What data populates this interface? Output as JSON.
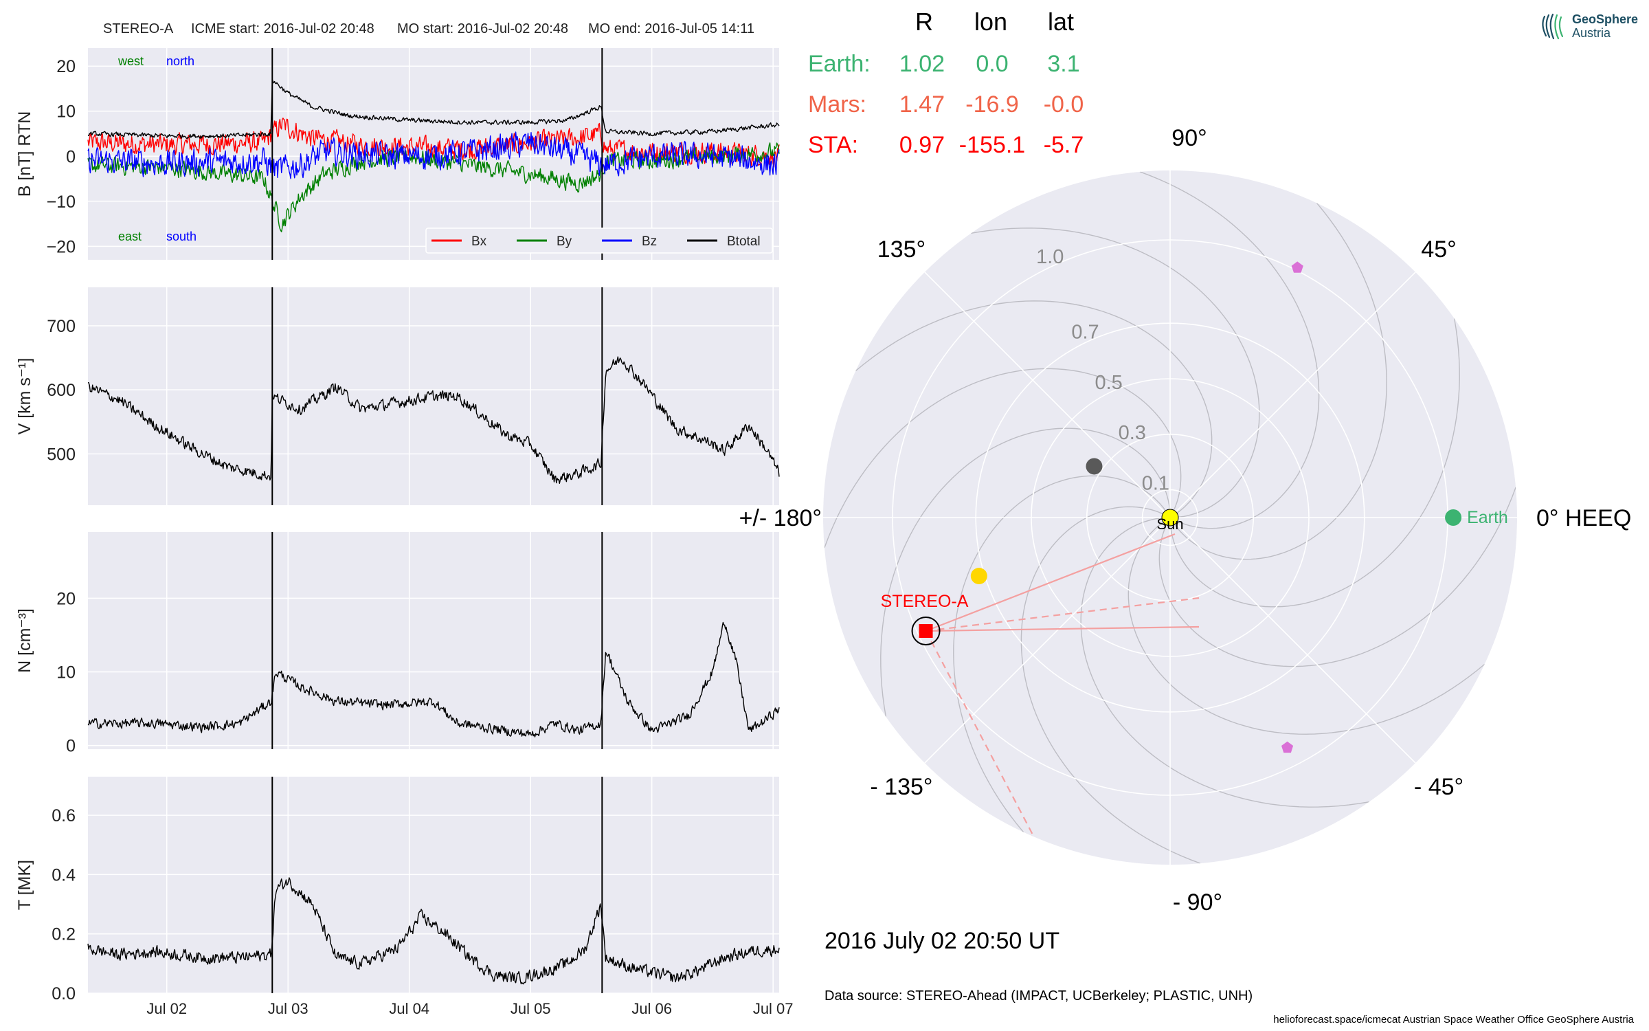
{
  "header": {
    "spacecraft": "STEREO-A",
    "icme_start": "ICME start: 2016-Jul-02 20:48",
    "mo_start": "MO start: 2016-Jul-02 20:48",
    "mo_end": "MO end: 2016-Jul-05 14:11"
  },
  "logo": {
    "name": "GeoSphere",
    "sub": "Austria"
  },
  "positions": {
    "headers": [
      "R",
      "lon",
      "lat"
    ],
    "rows": [
      {
        "label": "Earth:",
        "R": "1.02",
        "lon": "0.0",
        "lat": "3.1",
        "color": "#3cb371"
      },
      {
        "label": "Mars:",
        "R": "1.47",
        "lon": "-16.9",
        "lat": "-0.0",
        "color": "#f06449"
      },
      {
        "label": "STA:",
        "R": "0.97",
        "lon": "-155.1",
        "lat": "-5.7",
        "color": "#ff0000"
      }
    ]
  },
  "timestamp": "2016 July 02  20:50 UT",
  "data_source": "Data source: STEREO-Ahead (IMPACT, UCBerkeley; PLASTIC, UNH)",
  "footer": "helioforecast.space/icmecat   Austrian Space Weather Office   GeoSphere Austria",
  "colors": {
    "panel_bg": "#eaeaf2",
    "grid": "#ffffff",
    "bx": "#ff0000",
    "by": "#008000",
    "bz": "#0000ff",
    "btotal": "#000000"
  },
  "chart_data": [
    {
      "type": "line",
      "panel": "magnetic-field",
      "ylabel": "B [nT] RTN",
      "ylim": [
        -23,
        24
      ],
      "yticks": [
        20,
        10,
        0,
        -10,
        -20
      ],
      "ytick_labels": [
        "20",
        "10",
        "0",
        "−10",
        "−20"
      ],
      "xlim_days": [
        1.35,
        7.05
      ],
      "xticks_days": [
        2,
        3,
        4,
        5,
        6,
        7
      ],
      "xtick_labels": [
        "Jul 02",
        "Jul 03",
        "Jul 04",
        "Jul 05",
        "Jul 06",
        "Jul 07"
      ],
      "event_lines_days": [
        2.87,
        5.59
      ],
      "annotations": {
        "west": "west",
        "north": "north",
        "east": "east",
        "south": "south"
      },
      "legend_position": "lower-right",
      "series": [
        {
          "name": "Bx",
          "color": "#ff0000",
          "knots": [
            [
              1.35,
              3
            ],
            [
              2.0,
              2.5
            ],
            [
              2.8,
              3
            ],
            [
              2.87,
              5
            ],
            [
              2.95,
              7
            ],
            [
              3.2,
              4
            ],
            [
              3.6,
              2.5
            ],
            [
              4.0,
              2
            ],
            [
              4.5,
              1.5
            ],
            [
              5.0,
              3
            ],
            [
              5.4,
              4
            ],
            [
              5.58,
              5
            ],
            [
              5.62,
              1.5
            ],
            [
              6.0,
              1
            ],
            [
              6.5,
              1
            ],
            [
              7.05,
              0
            ]
          ],
          "noise": 3.2
        },
        {
          "name": "By",
          "color": "#008000",
          "knots": [
            [
              1.35,
              -2
            ],
            [
              2.0,
              -2.5
            ],
            [
              2.5,
              -4
            ],
            [
              2.8,
              -5
            ],
            [
              2.87,
              -10
            ],
            [
              2.95,
              -15
            ],
            [
              3.1,
              -9
            ],
            [
              3.3,
              -4
            ],
            [
              3.6,
              -1
            ],
            [
              4.0,
              0
            ],
            [
              4.5,
              -2
            ],
            [
              5.0,
              -4
            ],
            [
              5.4,
              -6
            ],
            [
              5.58,
              -4
            ],
            [
              5.62,
              -1
            ],
            [
              6.0,
              -1
            ],
            [
              6.5,
              0
            ],
            [
              7.05,
              1
            ]
          ],
          "noise": 2.6
        },
        {
          "name": "Bz",
          "color": "#0000ff",
          "knots": [
            [
              1.35,
              -1
            ],
            [
              2.0,
              -1.5
            ],
            [
              2.8,
              -1
            ],
            [
              2.9,
              -3
            ],
            [
              3.1,
              -2
            ],
            [
              3.3,
              1
            ],
            [
              3.8,
              0
            ],
            [
              4.2,
              0
            ],
            [
              4.8,
              2
            ],
            [
              5.0,
              3
            ],
            [
              5.4,
              0
            ],
            [
              5.6,
              -2
            ],
            [
              6.0,
              0
            ],
            [
              6.5,
              0
            ],
            [
              7.05,
              -2
            ]
          ],
          "noise": 4.0
        },
        {
          "name": "Btotal",
          "color": "#000000",
          "knots": [
            [
              1.35,
              5
            ],
            [
              2.0,
              4.5
            ],
            [
              2.5,
              4.5
            ],
            [
              2.86,
              5
            ],
            [
              2.87,
              17
            ],
            [
              3.0,
              14
            ],
            [
              3.2,
              11
            ],
            [
              3.5,
              9
            ],
            [
              4.0,
              8
            ],
            [
              4.5,
              7.5
            ],
            [
              5.0,
              7.5
            ],
            [
              5.3,
              8
            ],
            [
              5.58,
              11
            ],
            [
              5.62,
              5.5
            ],
            [
              6.0,
              5
            ],
            [
              6.5,
              5.5
            ],
            [
              7.05,
              7
            ]
          ],
          "noise": 0.7
        }
      ]
    },
    {
      "type": "line",
      "panel": "speed",
      "ylabel": "V [km s⁻¹]",
      "ylim": [
        420,
        760
      ],
      "yticks": [
        500,
        600,
        700
      ],
      "ytick_labels": [
        "500",
        "600",
        "700"
      ],
      "xlim_days": [
        1.35,
        7.05
      ],
      "event_lines_days": [
        2.87,
        5.59
      ],
      "series": [
        {
          "name": "V",
          "color": "#000000",
          "knots": [
            [
              1.35,
              605
            ],
            [
              1.6,
              585
            ],
            [
              1.9,
              545
            ],
            [
              2.2,
              510
            ],
            [
              2.5,
              480
            ],
            [
              2.86,
              465
            ],
            [
              2.87,
              590
            ],
            [
              3.1,
              570
            ],
            [
              3.4,
              605
            ],
            [
              3.6,
              570
            ],
            [
              3.9,
              580
            ],
            [
              4.2,
              590
            ],
            [
              4.4,
              590
            ],
            [
              4.6,
              560
            ],
            [
              4.8,
              530
            ],
            [
              5.0,
              515
            ],
            [
              5.2,
              460
            ],
            [
              5.4,
              470
            ],
            [
              5.58,
              485
            ],
            [
              5.62,
              630
            ],
            [
              5.75,
              650
            ],
            [
              5.95,
              605
            ],
            [
              6.2,
              540
            ],
            [
              6.45,
              520
            ],
            [
              6.6,
              505
            ],
            [
              6.8,
              545
            ],
            [
              6.95,
              505
            ],
            [
              7.05,
              470
            ]
          ],
          "noise": 12
        }
      ]
    },
    {
      "type": "line",
      "panel": "density",
      "ylabel": "N [cm⁻³]",
      "ylim": [
        -0.5,
        29
      ],
      "yticks": [
        0,
        10,
        20
      ],
      "ytick_labels": [
        "0",
        "10",
        "20"
      ],
      "xlim_days": [
        1.35,
        7.05
      ],
      "event_lines_days": [
        2.87,
        5.59
      ],
      "series": [
        {
          "name": "N",
          "color": "#000000",
          "knots": [
            [
              1.35,
              3
            ],
            [
              1.9,
              3
            ],
            [
              2.3,
              2.5
            ],
            [
              2.6,
              3
            ],
            [
              2.86,
              6
            ],
            [
              2.9,
              10
            ],
            [
              3.1,
              8
            ],
            [
              3.4,
              6
            ],
            [
              3.8,
              5.5
            ],
            [
              4.2,
              6
            ],
            [
              4.4,
              3
            ],
            [
              4.8,
              2
            ],
            [
              5.0,
              1.5
            ],
            [
              5.2,
              3
            ],
            [
              5.4,
              2
            ],
            [
              5.58,
              3
            ],
            [
              5.62,
              13
            ],
            [
              5.8,
              6
            ],
            [
              6.0,
              2
            ],
            [
              6.3,
              4
            ],
            [
              6.5,
              10
            ],
            [
              6.6,
              17
            ],
            [
              6.7,
              11
            ],
            [
              6.8,
              2
            ],
            [
              6.9,
              3
            ],
            [
              7.05,
              5
            ]
          ],
          "noise": 0.9
        }
      ]
    },
    {
      "type": "line",
      "panel": "temperature",
      "ylabel": "T [MK]",
      "ylim": [
        0,
        0.73
      ],
      "yticks": [
        0.0,
        0.2,
        0.4,
        0.6
      ],
      "ytick_labels": [
        "0.0",
        "0.2",
        "0.4",
        "0.6"
      ],
      "xlim_days": [
        1.35,
        7.05
      ],
      "xticks_days": [
        2,
        3,
        4,
        5,
        6,
        7
      ],
      "xtick_labels": [
        "Jul 02",
        "Jul 03",
        "Jul 04",
        "Jul 05",
        "Jul 06",
        "Jul 07"
      ],
      "event_lines_days": [
        2.87,
        5.59
      ],
      "series": [
        {
          "name": "T",
          "color": "#000000",
          "knots": [
            [
              1.35,
              0.15
            ],
            [
              1.6,
              0.13
            ],
            [
              1.9,
              0.14
            ],
            [
              2.3,
              0.12
            ],
            [
              2.6,
              0.12
            ],
            [
              2.86,
              0.13
            ],
            [
              2.9,
              0.35
            ],
            [
              3.0,
              0.38
            ],
            [
              3.2,
              0.3
            ],
            [
              3.4,
              0.12
            ],
            [
              3.6,
              0.1
            ],
            [
              3.9,
              0.15
            ],
            [
              4.1,
              0.26
            ],
            [
              4.3,
              0.2
            ],
            [
              4.5,
              0.12
            ],
            [
              4.7,
              0.06
            ],
            [
              4.9,
              0.05
            ],
            [
              5.1,
              0.07
            ],
            [
              5.3,
              0.1
            ],
            [
              5.45,
              0.15
            ],
            [
              5.58,
              0.3
            ],
            [
              5.62,
              0.12
            ],
            [
              5.8,
              0.09
            ],
            [
              6.0,
              0.07
            ],
            [
              6.2,
              0.05
            ],
            [
              6.4,
              0.08
            ],
            [
              6.6,
              0.12
            ],
            [
              6.8,
              0.14
            ],
            [
              7.05,
              0.15
            ]
          ],
          "noise": 0.028
        }
      ]
    },
    {
      "type": "scatter",
      "panel": "polar-positions",
      "r_ticks": [
        0.1,
        0.3,
        0.5,
        0.7,
        1.0
      ],
      "r_tick_labels": [
        "0.1",
        "0.3",
        "0.5",
        "0.7",
        "1.0"
      ],
      "angle_labels": [
        {
          "deg": 90,
          "text": "90°"
        },
        {
          "deg": 45,
          "text": "45°"
        },
        {
          "deg": 0,
          "text": "0° HEEQ"
        },
        {
          "deg": -45,
          "text": "- 45°"
        },
        {
          "deg": -90,
          "text": "- 90°"
        },
        {
          "deg": -135,
          "text": "- 135°"
        },
        {
          "deg": 180,
          "text": "+/- 180°"
        },
        {
          "deg": 135,
          "text": "135°"
        }
      ],
      "bodies": [
        {
          "name": "Sun",
          "lon": 0,
          "r": 0.0,
          "color": "#ffff00",
          "marker": "circle"
        },
        {
          "name": "Earth",
          "lon": 0.0,
          "r": 1.02,
          "color": "#3cb371",
          "marker": "circle"
        },
        {
          "name": "Mercury",
          "lon": 146,
          "r": 0.33,
          "color": "#595959",
          "marker": "circle"
        },
        {
          "name": "Venus",
          "lon": -163,
          "r": 0.72,
          "color": "#ffd700",
          "marker": "circle"
        },
        {
          "name": "STEREO-A",
          "lon": -155.1,
          "r": 0.97,
          "color": "#ff0000",
          "marker": "square"
        },
        {
          "name": "PSP",
          "lon": 63,
          "r": 1.01,
          "color": "#da70d6",
          "marker": "pentagon"
        },
        {
          "name": "SolO",
          "lon": -63,
          "r": 0.93,
          "color": "#da70d6",
          "marker": "pentagon"
        }
      ]
    }
  ]
}
